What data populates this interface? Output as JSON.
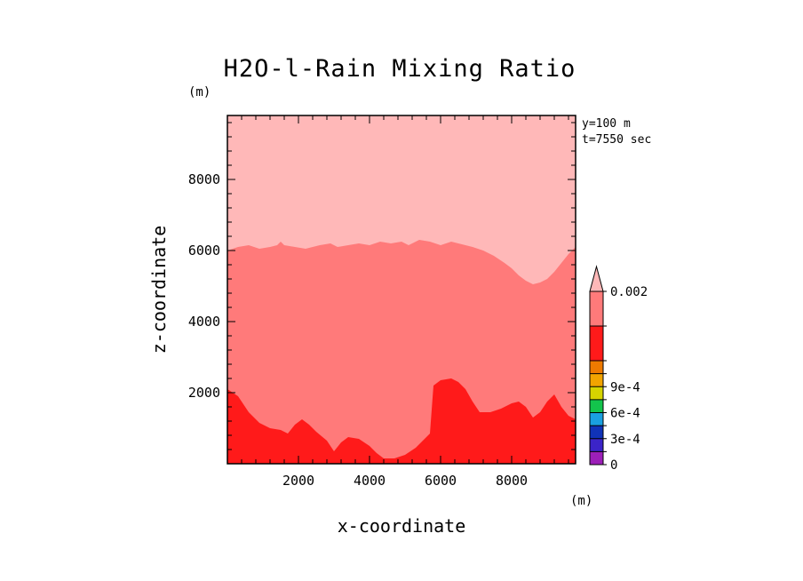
{
  "chart_data": {
    "type": "heatmap",
    "title": "H2O-l-Rain Mixing Ratio",
    "xlabel": "x-coordinate",
    "ylabel": "z-coordinate",
    "x_unit": "(m)",
    "y_unit": "(m)",
    "xlim": [
      0,
      9800
    ],
    "ylim": [
      0,
      9800
    ],
    "x_ticks": [
      "2000",
      "4000",
      "6000",
      "8000"
    ],
    "y_ticks": [
      "2000",
      "4000",
      "6000",
      "8000"
    ],
    "annotations": [
      "y=100 m",
      "t=7550 sec"
    ],
    "colorbar": {
      "tick_labels": [
        "0.002",
        "9e-4",
        "6e-4",
        "3e-4",
        "0"
      ],
      "levels": [
        {
          "lower": 0.0,
          "upper": 0.00015,
          "color": "#9c1fb8"
        },
        {
          "lower": 0.00015,
          "upper": 0.0003,
          "color": "#3b24c8"
        },
        {
          "lower": 0.0003,
          "upper": 0.00045,
          "color": "#1033b8"
        },
        {
          "lower": 0.00045,
          "upper": 0.0006,
          "color": "#1aa0e0"
        },
        {
          "lower": 0.0006,
          "upper": 0.00075,
          "color": "#13c44c"
        },
        {
          "lower": 0.00075,
          "upper": 0.0009,
          "color": "#d6d400"
        },
        {
          "lower": 0.0009,
          "upper": 0.00105,
          "color": "#f2a400"
        },
        {
          "lower": 0.00105,
          "upper": 0.0012,
          "color": "#ee7a00"
        },
        {
          "lower": 0.0012,
          "upper": 0.0016,
          "color": "#ff1a1a"
        },
        {
          "lower": 0.0016,
          "upper": 0.002,
          "color": "#ff7a7a"
        },
        {
          "lower": 0.002,
          "upper": null,
          "color": "#ffb8b8"
        }
      ]
    },
    "regions": [
      {
        "name": "upper-layer",
        "level": "above 0.002",
        "color": "#ffb8b8",
        "boundary": [
          [
            0,
            9800
          ],
          [
            9800,
            9800
          ],
          [
            9800,
            0
          ]
        ]
      },
      {
        "name": "middle-layer",
        "level": "0.0016-0.002",
        "color": "#ff7a7a",
        "boundary": [
          [
            0,
            6000
          ],
          [
            300,
            6100
          ],
          [
            600,
            6150
          ],
          [
            900,
            6050
          ],
          [
            1200,
            6100
          ],
          [
            1400,
            6150
          ],
          [
            1500,
            6250
          ],
          [
            1600,
            6150
          ],
          [
            1900,
            6100
          ],
          [
            2200,
            6050
          ],
          [
            2600,
            6150
          ],
          [
            2900,
            6200
          ],
          [
            3100,
            6100
          ],
          [
            3400,
            6150
          ],
          [
            3700,
            6200
          ],
          [
            4000,
            6150
          ],
          [
            4300,
            6250
          ],
          [
            4600,
            6200
          ],
          [
            4900,
            6250
          ],
          [
            5100,
            6150
          ],
          [
            5400,
            6300
          ],
          [
            5700,
            6250
          ],
          [
            6000,
            6150
          ],
          [
            6300,
            6250
          ],
          [
            6700,
            6150
          ],
          [
            6900,
            6100
          ],
          [
            7200,
            6000
          ],
          [
            7500,
            5850
          ],
          [
            7800,
            5650
          ],
          [
            8000,
            5500
          ],
          [
            8200,
            5300
          ],
          [
            8400,
            5150
          ],
          [
            8600,
            5050
          ],
          [
            8800,
            5100
          ],
          [
            9000,
            5200
          ],
          [
            9200,
            5400
          ],
          [
            9400,
            5650
          ],
          [
            9600,
            5900
          ],
          [
            9800,
            6100
          ]
        ]
      },
      {
        "name": "lower-layer",
        "level": "0.0012-0.0016",
        "color": "#ff1a1a",
        "boundary": [
          [
            0,
            2100
          ],
          [
            300,
            1900
          ],
          [
            600,
            1450
          ],
          [
            900,
            1150
          ],
          [
            1200,
            1000
          ],
          [
            1500,
            950
          ],
          [
            1700,
            850
          ],
          [
            1900,
            1100
          ],
          [
            2100,
            1250
          ],
          [
            2300,
            1100
          ],
          [
            2500,
            900
          ],
          [
            2800,
            650
          ],
          [
            3000,
            350
          ],
          [
            3200,
            600
          ],
          [
            3400,
            750
          ],
          [
            3700,
            700
          ],
          [
            4000,
            500
          ],
          [
            4200,
            300
          ],
          [
            4400,
            150
          ],
          [
            4700,
            150
          ],
          [
            5000,
            250
          ],
          [
            5300,
            450
          ],
          [
            5500,
            650
          ],
          [
            5700,
            850
          ],
          [
            5800,
            2200
          ],
          [
            6000,
            2350
          ],
          [
            6300,
            2400
          ],
          [
            6500,
            2300
          ],
          [
            6700,
            2100
          ],
          [
            6900,
            1750
          ],
          [
            7100,
            1450
          ],
          [
            7400,
            1450
          ],
          [
            7700,
            1550
          ],
          [
            8000,
            1700
          ],
          [
            8200,
            1750
          ],
          [
            8400,
            1600
          ],
          [
            8600,
            1300
          ],
          [
            8800,
            1450
          ],
          [
            9000,
            1750
          ],
          [
            9200,
            1950
          ],
          [
            9400,
            1600
          ],
          [
            9600,
            1350
          ],
          [
            9800,
            1250
          ]
        ]
      }
    ]
  }
}
